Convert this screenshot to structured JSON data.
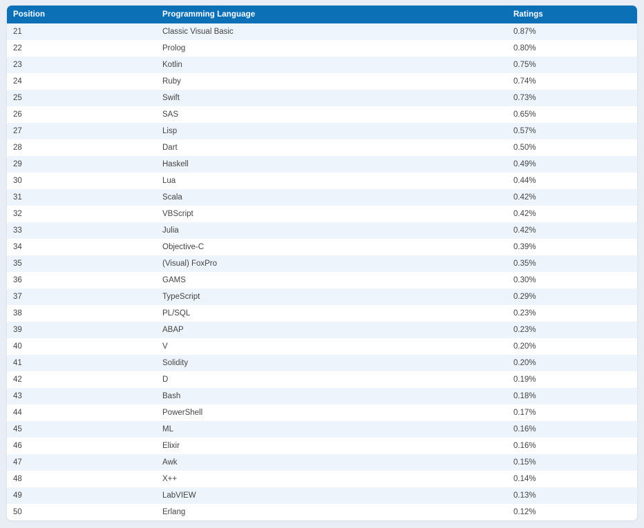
{
  "page": {
    "background_color": "#e9eef5"
  },
  "table": {
    "header_bg_color": "#0c70b7",
    "header_text_color": "#ffffff",
    "stripe_row_color": "#edf4fb",
    "columns": [
      {
        "key": "position",
        "label": "Position"
      },
      {
        "key": "language",
        "label": "Programming Language"
      },
      {
        "key": "ratings",
        "label": "Ratings"
      }
    ],
    "rows": [
      {
        "position": "21",
        "language": "Classic Visual Basic",
        "ratings": "0.87%"
      },
      {
        "position": "22",
        "language": "Prolog",
        "ratings": "0.80%"
      },
      {
        "position": "23",
        "language": "Kotlin",
        "ratings": "0.75%"
      },
      {
        "position": "24",
        "language": "Ruby",
        "ratings": "0.74%"
      },
      {
        "position": "25",
        "language": "Swift",
        "ratings": "0.73%"
      },
      {
        "position": "26",
        "language": "SAS",
        "ratings": "0.65%"
      },
      {
        "position": "27",
        "language": "Lisp",
        "ratings": "0.57%"
      },
      {
        "position": "28",
        "language": "Dart",
        "ratings": "0.50%"
      },
      {
        "position": "29",
        "language": "Haskell",
        "ratings": "0.49%"
      },
      {
        "position": "30",
        "language": "Lua",
        "ratings": "0.44%"
      },
      {
        "position": "31",
        "language": "Scala",
        "ratings": "0.42%"
      },
      {
        "position": "32",
        "language": "VBScript",
        "ratings": "0.42%"
      },
      {
        "position": "33",
        "language": "Julia",
        "ratings": "0.42%"
      },
      {
        "position": "34",
        "language": "Objective-C",
        "ratings": "0.39%"
      },
      {
        "position": "35",
        "language": "(Visual) FoxPro",
        "ratings": "0.35%"
      },
      {
        "position": "36",
        "language": "GAMS",
        "ratings": "0.30%"
      },
      {
        "position": "37",
        "language": "TypeScript",
        "ratings": "0.29%"
      },
      {
        "position": "38",
        "language": "PL/SQL",
        "ratings": "0.23%"
      },
      {
        "position": "39",
        "language": "ABAP",
        "ratings": "0.23%"
      },
      {
        "position": "40",
        "language": "V",
        "ratings": "0.20%"
      },
      {
        "position": "41",
        "language": "Solidity",
        "ratings": "0.20%"
      },
      {
        "position": "42",
        "language": "D",
        "ratings": "0.19%"
      },
      {
        "position": "43",
        "language": "Bash",
        "ratings": "0.18%"
      },
      {
        "position": "44",
        "language": "PowerShell",
        "ratings": "0.17%"
      },
      {
        "position": "45",
        "language": "ML",
        "ratings": "0.16%"
      },
      {
        "position": "46",
        "language": "Elixir",
        "ratings": "0.16%"
      },
      {
        "position": "47",
        "language": "Awk",
        "ratings": "0.15%"
      },
      {
        "position": "48",
        "language": "X++",
        "ratings": "0.14%"
      },
      {
        "position": "49",
        "language": "LabVIEW",
        "ratings": "0.13%"
      },
      {
        "position": "50",
        "language": "Erlang",
        "ratings": "0.12%"
      }
    ]
  }
}
